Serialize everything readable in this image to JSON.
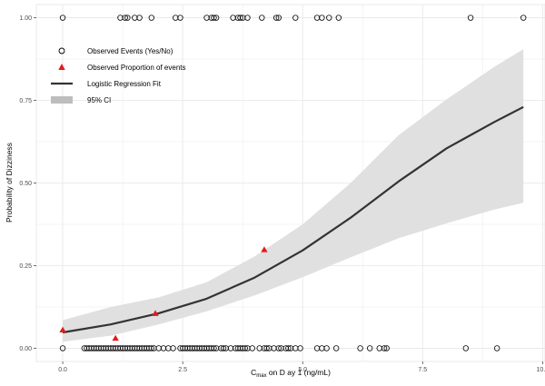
{
  "chart_data": {
    "type": "scatter",
    "title": "",
    "xlabel": {
      "main": "C",
      "sub": "max",
      "rest": " on D ay 1 (ng/mL)"
    },
    "ylabel": "Probability of Dizziness",
    "xlim": [
      -0.55,
      10.05
    ],
    "ylim": [
      -0.04,
      1.04
    ],
    "x_ticks": [
      0.0,
      2.5,
      5.0,
      7.5,
      10.0
    ],
    "x_tick_labels": [
      "0.0",
      "2.5",
      "5.0",
      "7.5",
      "10.0"
    ],
    "y_ticks": [
      0.0,
      0.25,
      0.5,
      0.75,
      1.0
    ],
    "y_tick_labels": [
      "0.00",
      "0.25",
      "0.50",
      "0.75",
      "1.00"
    ],
    "grid": true,
    "legend_position": "top-left",
    "legend": [
      {
        "label": "Observed Events (Yes/No)",
        "marker": "open-circle"
      },
      {
        "label": "Observed Proportion of events",
        "marker": "red-triangle"
      },
      {
        "label": "Logistic Regression Fit",
        "marker": "line"
      },
      {
        "label": "95% CI",
        "marker": "band"
      }
    ],
    "colors": {
      "event_circle": "#000000",
      "proportion": "#e31a1c",
      "fit": "#333333",
      "ci": "#e0e0e0",
      "grid": "#e6e6e6"
    },
    "series": [
      {
        "name": "Observed Events (Yes/No)",
        "type": "scatter",
        "y_zero_x": [
          0.0,
          0.45,
          0.5,
          0.55,
          0.6,
          0.65,
          0.7,
          0.75,
          0.8,
          0.85,
          0.9,
          0.95,
          1.0,
          1.05,
          1.1,
          1.15,
          1.2,
          1.25,
          1.3,
          1.35,
          1.4,
          1.45,
          1.5,
          1.55,
          1.6,
          1.65,
          1.7,
          1.75,
          1.8,
          1.85,
          1.9,
          2.0,
          2.1,
          2.2,
          2.3,
          2.45,
          2.5,
          2.55,
          2.6,
          2.65,
          2.7,
          2.75,
          2.8,
          2.85,
          2.9,
          2.95,
          3.0,
          3.05,
          3.1,
          3.15,
          3.2,
          3.3,
          3.35,
          3.4,
          3.5,
          3.6,
          3.65,
          3.7,
          3.75,
          3.8,
          3.85,
          3.95,
          4.1,
          4.2,
          4.25,
          4.3,
          4.4,
          4.5,
          4.55,
          4.65,
          4.7,
          4.75,
          4.85,
          4.95,
          5.3,
          5.4,
          5.5,
          5.7,
          6.2,
          6.4,
          6.6,
          6.7,
          6.75,
          8.4,
          9.05
        ],
        "y_one_x": [
          0.0,
          1.2,
          1.3,
          1.35,
          1.5,
          1.6,
          1.85,
          2.35,
          2.45,
          3.0,
          3.1,
          3.15,
          3.2,
          3.55,
          3.65,
          3.7,
          3.75,
          3.85,
          4.15,
          4.45,
          4.5,
          4.85,
          5.3,
          5.4,
          5.55,
          5.75,
          8.5,
          9.6
        ]
      },
      {
        "name": "Observed Proportion of events",
        "type": "scatter",
        "x": [
          0.0,
          1.1,
          1.93,
          4.2
        ],
        "y": [
          0.055,
          0.03,
          0.105,
          0.298
        ]
      },
      {
        "name": "Logistic Regression Fit",
        "type": "line",
        "x": [
          0.0,
          1.0,
          2.0,
          3.0,
          4.0,
          5.0,
          6.0,
          7.0,
          8.0,
          9.0,
          9.6
        ],
        "y": [
          0.048,
          0.072,
          0.106,
          0.15,
          0.214,
          0.296,
          0.395,
          0.505,
          0.605,
          0.685,
          0.73
        ]
      },
      {
        "name": "95% CI",
        "type": "area",
        "x": [
          0.0,
          1.0,
          2.0,
          3.0,
          4.0,
          5.0,
          6.0,
          7.0,
          8.0,
          9.0,
          9.6
        ],
        "lower": [
          0.02,
          0.038,
          0.072,
          0.112,
          0.16,
          0.215,
          0.275,
          0.333,
          0.378,
          0.42,
          0.44
        ],
        "upper": [
          0.085,
          0.125,
          0.154,
          0.2,
          0.278,
          0.375,
          0.5,
          0.645,
          0.753,
          0.852,
          0.905
        ]
      }
    ]
  }
}
